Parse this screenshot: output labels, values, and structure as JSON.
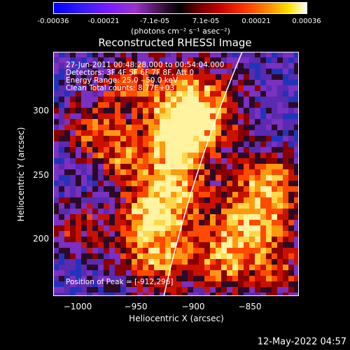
{
  "colorbar": {
    "ticks": [
      "-0.00036",
      "-0.00021",
      "-7.1e-05",
      "7.1e-05",
      "0.00021",
      "0.00036"
    ],
    "units": "(photons cm⁻² s⁻¹ asec⁻²)"
  },
  "title": "Reconstructed RHESSI Image",
  "info": {
    "line1": "27-Jun-2011 00:48:28.000 to 00:54:04.000",
    "line2": "Detectors: 3F 4F 5F 6F 7F 8F, Att 0",
    "line3": "Energy Range: 25.0 - 50.0 keV",
    "line4": "Clean     Total counts: 8.77E+03",
    "peak": "Position of Peak = [-912,296]"
  },
  "axes": {
    "xlabel": "Heliocentric X (arcsec)",
    "ylabel": "Heliocentric Y (arcsec)",
    "xticks": [
      "−1000",
      "−950",
      "−900",
      "−850"
    ],
    "yticks": [
      "300",
      "250",
      "200"
    ]
  },
  "timestamp": "12-May-2022 04:57",
  "colors": {
    "background": "#000000",
    "limb": "#ffffff"
  }
}
